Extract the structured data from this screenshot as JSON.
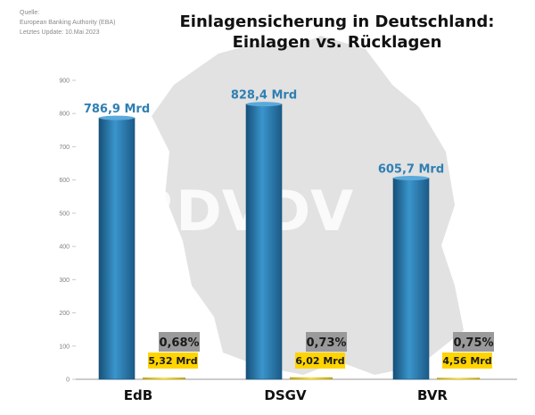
{
  "source": {
    "label": "Quelle:",
    "authority": "European Banking Authority (EBA)",
    "update": "Letztes Update: 10.Mai 2023"
  },
  "watermark": "BDVDV",
  "colors": {
    "bar": "#2f7fb3",
    "bar_dark": "#165079",
    "value_label": "#2f7fb3",
    "reserve_box": "#ffd400",
    "percent_box": "#9a9a9a",
    "map": "#e2e2e2"
  },
  "chart_data": {
    "type": "bar",
    "title": "Einlagensicherung in Deutschland:",
    "subtitle": "Einlagen vs. Rücklagen",
    "categories": [
      "EdB",
      "DSGV",
      "BVR"
    ],
    "series": [
      {
        "values": [
          786.9,
          828.4,
          605.7
        ],
        "labels": [
          "786,9 Mrd",
          "828,4 Mrd",
          "605,7 Mrd"
        ]
      },
      {
        "values": [
          5.32,
          6.02,
          4.56
        ],
        "labels": [
          "5,32 Mrd",
          "6,02 Mrd",
          "4,56 Mrd"
        ]
      }
    ],
    "ratios": [
      "0,68%",
      "0,73%",
      "0,75%"
    ],
    "ylim": [
      0,
      900
    ],
    "yticks": [
      0,
      100,
      200,
      300,
      400,
      500,
      600,
      700,
      800,
      900
    ],
    "grid": false,
    "legend": "none",
    "xlabel": "",
    "ylabel": ""
  }
}
